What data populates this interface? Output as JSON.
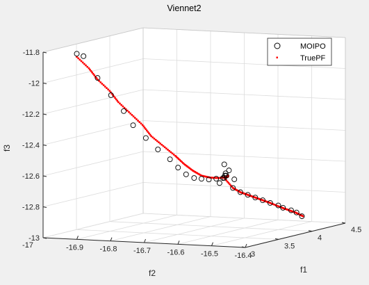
{
  "chart_data": {
    "type": "scatter",
    "projection": "3d",
    "title": "Viennet2",
    "xlabel": "f1",
    "ylabel": "f2",
    "zlabel": "f3",
    "xlim": [
      3,
      4.5
    ],
    "ylim": [
      -17,
      -16.4
    ],
    "zlim": [
      -13,
      -11.8
    ],
    "xticks": [
      "3",
      "3.5",
      "4",
      "4.5"
    ],
    "yticks": [
      "-16.9",
      "-16.8",
      "-16.7",
      "-16.6",
      "-16.5",
      "-16.4"
    ],
    "zticks": [
      "-11.8",
      "-12",
      "-12.2",
      "-12.4",
      "-12.6",
      "-12.8",
      "-13"
    ],
    "y_corner_label": "-17",
    "grid": true,
    "legend_position": "top-right",
    "colors": {
      "MOIPO": "#000000",
      "TruePF": "#ff0000"
    },
    "series": [
      {
        "name": "MOIPO",
        "marker": "open-circle",
        "x": [
          3.0,
          3.05,
          3.16,
          3.26,
          3.35,
          3.44,
          3.53,
          3.61,
          3.69,
          3.76,
          3.83,
          3.9,
          3.96,
          4.02,
          4.08,
          4.13,
          4.18,
          4.22,
          4.26,
          4.3,
          4.28,
          4.24,
          4.2,
          4.16,
          4.12,
          4.08,
          4.05,
          4.02,
          3.99,
          3.97,
          3.95,
          4.2,
          4.22,
          4.18,
          4.25
        ],
        "y": [
          -16.9,
          -16.89,
          -16.87,
          -16.85,
          -16.83,
          -16.82,
          -16.8,
          -16.78,
          -16.76,
          -16.75,
          -16.74,
          -16.73,
          -16.72,
          -16.71,
          -16.7,
          -16.69,
          -16.69,
          -16.7,
          -16.71,
          -16.72,
          -16.69,
          -16.66,
          -16.63,
          -16.6,
          -16.57,
          -16.54,
          -16.51,
          -16.49,
          -16.46,
          -16.44,
          -16.42,
          -16.7,
          -16.69,
          -16.71,
          -16.68
        ],
        "z": [
          -11.8,
          -11.82,
          -11.97,
          -12.09,
          -12.2,
          -12.3,
          -12.39,
          -12.47,
          -12.54,
          -12.6,
          -12.65,
          -12.68,
          -12.69,
          -12.7,
          -12.7,
          -12.7,
          -12.69,
          -12.68,
          -12.7,
          -12.72,
          -12.78,
          -12.8,
          -12.81,
          -12.82,
          -12.83,
          -12.84,
          -12.85,
          -12.86,
          -12.87,
          -12.88,
          -12.9,
          -12.62,
          -12.66,
          -12.74,
          -12.72
        ]
      },
      {
        "name": "TruePF",
        "marker": "dot",
        "x": [
          3.0,
          3.08,
          3.16,
          3.24,
          3.32,
          3.4,
          3.48,
          3.56,
          3.64,
          3.72,
          3.8,
          3.88,
          3.96,
          4.04,
          4.12,
          4.2,
          4.26,
          4.3,
          4.28,
          4.24,
          4.2,
          4.16,
          4.12,
          4.08,
          4.04,
          4.0,
          3.96,
          3.93
        ],
        "y": [
          -16.9,
          -16.88,
          -16.87,
          -16.85,
          -16.84,
          -16.82,
          -16.8,
          -16.79,
          -16.77,
          -16.75,
          -16.74,
          -16.73,
          -16.72,
          -16.71,
          -16.7,
          -16.69,
          -16.7,
          -16.72,
          -16.69,
          -16.66,
          -16.63,
          -16.6,
          -16.57,
          -16.54,
          -16.5,
          -16.47,
          -16.44,
          -16.41
        ],
        "z": [
          -11.82,
          -11.9,
          -11.98,
          -12.06,
          -12.14,
          -12.22,
          -12.3,
          -12.38,
          -12.45,
          -12.52,
          -12.58,
          -12.63,
          -12.67,
          -12.69,
          -12.7,
          -12.7,
          -12.7,
          -12.72,
          -12.78,
          -12.8,
          -12.81,
          -12.82,
          -12.83,
          -12.84,
          -12.86,
          -12.87,
          -12.88,
          -12.9
        ]
      }
    ]
  }
}
